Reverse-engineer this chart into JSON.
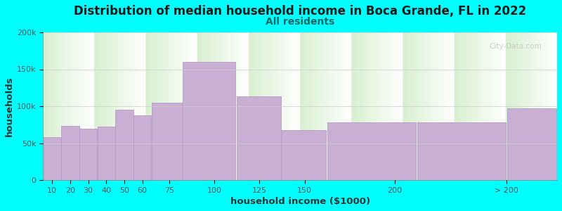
{
  "title": "Distribution of median household income in Boca Grande, FL in 2022",
  "subtitle": "All residents",
  "xlabel": "household income ($1000)",
  "ylabel": "households",
  "background_color": "#00FFFF",
  "plot_bg_top": "#d8f0d0",
  "plot_bg_bottom": "#ffffff",
  "bar_color": "#c9afd4",
  "bar_edge_color": "#b899c8",
  "bin_edges": [
    5,
    15,
    25,
    35,
    45,
    55,
    65,
    82,
    112,
    137,
    162,
    212,
    262,
    290
  ],
  "tick_positions": [
    10,
    20,
    30,
    40,
    50,
    60,
    75,
    100,
    125,
    150,
    200,
    262
  ],
  "tick_labels": [
    "10",
    "20",
    "30",
    "40",
    "50",
    "60",
    "75",
    "100",
    "125",
    "150",
    "200",
    "> 200"
  ],
  "values": [
    58000,
    73000,
    70000,
    72000,
    95000,
    88000,
    105000,
    160000,
    113000,
    68000,
    78000,
    78000,
    97000
  ],
  "ylim": [
    0,
    200000
  ],
  "yticks": [
    0,
    50000,
    100000,
    150000,
    200000
  ],
  "ytick_labels": [
    "0",
    "50k",
    "100k",
    "150k",
    "200k"
  ],
  "title_fontsize": 12,
  "subtitle_fontsize": 10,
  "axis_label_fontsize": 9.5,
  "tick_fontsize": 8,
  "title_color": "#1a1a1a",
  "subtitle_color": "#006666",
  "watermark_text": "City-Data.com",
  "xlim_left": 5,
  "xlim_right": 290
}
